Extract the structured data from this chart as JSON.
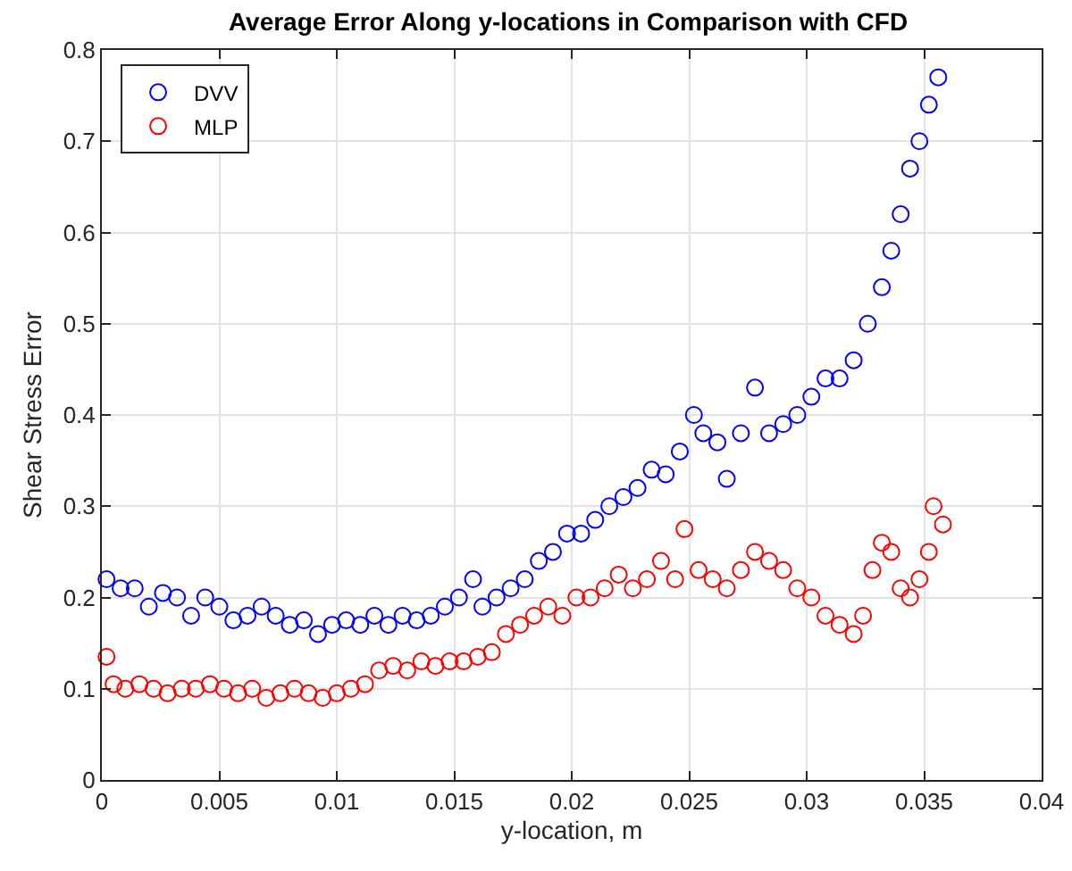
{
  "chart_data": {
    "type": "scatter",
    "title": "Average Error Along y-locations in Comparison with CFD",
    "xlabel": "y-location, m",
    "ylabel": "Shear Stress Error",
    "xlim": [
      0,
      0.04
    ],
    "xticks": [
      0,
      0.005,
      0.01,
      0.015,
      0.02,
      0.025,
      0.03,
      0.035,
      0.04
    ],
    "ylim": [
      0,
      0.8
    ],
    "yticks": [
      0,
      0.1,
      0.2,
      0.3,
      0.4,
      0.5,
      0.6,
      0.7,
      0.8
    ],
    "grid": true,
    "legend": "top left",
    "marker": "circle",
    "series": [
      {
        "name": "DVV",
        "color": "#0000ff",
        "x": [
          0.0002,
          0.0008,
          0.0014,
          0.002,
          0.0026,
          0.0032,
          0.0038,
          0.0044,
          0.005,
          0.0056,
          0.0062,
          0.0068,
          0.0074,
          0.008,
          0.0086,
          0.0092,
          0.0098,
          0.0104,
          0.011,
          0.0116,
          0.0122,
          0.0128,
          0.0134,
          0.014,
          0.0146,
          0.0152,
          0.0158,
          0.0162,
          0.0168,
          0.0174,
          0.018,
          0.0186,
          0.0192,
          0.0198,
          0.0204,
          0.021,
          0.0216,
          0.0222,
          0.0228,
          0.0234,
          0.024,
          0.0246,
          0.0252,
          0.0256,
          0.0262,
          0.0266,
          0.0272,
          0.0278,
          0.0284,
          0.029,
          0.0296,
          0.0302,
          0.0308,
          0.0314,
          0.032,
          0.0326,
          0.0332,
          0.0336,
          0.034,
          0.0344,
          0.0348,
          0.0352,
          0.0356
        ],
        "values": [
          0.22,
          0.21,
          0.21,
          0.19,
          0.205,
          0.2,
          0.18,
          0.2,
          0.19,
          0.175,
          0.18,
          0.19,
          0.18,
          0.17,
          0.175,
          0.16,
          0.17,
          0.175,
          0.17,
          0.18,
          0.17,
          0.18,
          0.175,
          0.18,
          0.19,
          0.2,
          0.22,
          0.19,
          0.2,
          0.21,
          0.22,
          0.24,
          0.25,
          0.27,
          0.27,
          0.285,
          0.3,
          0.31,
          0.32,
          0.34,
          0.335,
          0.36,
          0.4,
          0.38,
          0.37,
          0.33,
          0.38,
          0.43,
          0.38,
          0.39,
          0.4,
          0.42,
          0.44,
          0.44,
          0.46,
          0.5,
          0.54,
          0.58,
          0.62,
          0.67,
          0.7,
          0.74,
          0.77
        ]
      },
      {
        "name": "MLP",
        "color": "#ff0000",
        "x": [
          0.0002,
          0.0005,
          0.001,
          0.0016,
          0.0022,
          0.0028,
          0.0034,
          0.004,
          0.0046,
          0.0052,
          0.0058,
          0.0064,
          0.007,
          0.0076,
          0.0082,
          0.0088,
          0.0094,
          0.01,
          0.0106,
          0.0112,
          0.0118,
          0.0124,
          0.013,
          0.0136,
          0.0142,
          0.0148,
          0.0154,
          0.016,
          0.0166,
          0.0172,
          0.0178,
          0.0184,
          0.019,
          0.0196,
          0.0202,
          0.0208,
          0.0214,
          0.022,
          0.0226,
          0.0232,
          0.0238,
          0.0244,
          0.0248,
          0.0254,
          0.026,
          0.0266,
          0.0272,
          0.0278,
          0.0284,
          0.029,
          0.0296,
          0.0302,
          0.0308,
          0.0314,
          0.032,
          0.0324,
          0.0328,
          0.0332,
          0.0336,
          0.034,
          0.0344,
          0.0348,
          0.0352,
          0.0354,
          0.0358
        ],
        "values": [
          0.135,
          0.105,
          0.1,
          0.105,
          0.1,
          0.095,
          0.1,
          0.1,
          0.105,
          0.1,
          0.095,
          0.1,
          0.09,
          0.095,
          0.1,
          0.095,
          0.09,
          0.095,
          0.1,
          0.105,
          0.12,
          0.125,
          0.12,
          0.13,
          0.125,
          0.13,
          0.13,
          0.135,
          0.14,
          0.16,
          0.17,
          0.18,
          0.19,
          0.18,
          0.2,
          0.2,
          0.21,
          0.225,
          0.21,
          0.22,
          0.24,
          0.22,
          0.275,
          0.23,
          0.22,
          0.21,
          0.23,
          0.25,
          0.24,
          0.23,
          0.21,
          0.2,
          0.18,
          0.17,
          0.16,
          0.18,
          0.23,
          0.26,
          0.25,
          0.21,
          0.2,
          0.22,
          0.25,
          0.3,
          0.28
        ]
      }
    ]
  }
}
